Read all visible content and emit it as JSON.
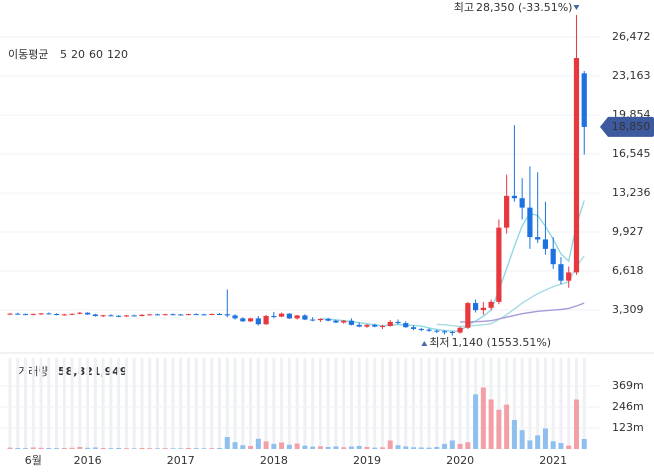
{
  "chart_data": {
    "type": "candlestick",
    "categories": [
      null,
      null,
      null,
      "6월",
      null,
      null,
      null,
      null,
      null,
      null,
      "2016",
      null,
      null,
      null,
      null,
      null,
      null,
      null,
      null,
      null,
      null,
      null,
      "2017",
      null,
      null,
      null,
      null,
      null,
      null,
      null,
      null,
      null,
      null,
      null,
      "2018",
      null,
      null,
      null,
      null,
      null,
      null,
      null,
      null,
      null,
      null,
      null,
      "2019",
      null,
      null,
      null,
      null,
      null,
      null,
      null,
      null,
      null,
      null,
      null,
      "2020",
      null,
      null,
      null,
      null,
      null,
      null,
      null,
      null,
      null,
      null,
      null,
      "2021",
      null,
      null,
      null,
      null
    ],
    "candles": {
      "open": [
        2950,
        3000,
        2960,
        2920,
        2980,
        3020,
        2970,
        2890,
        2940,
        2990,
        3080,
        2930,
        2800,
        2860,
        2820,
        2760,
        2850,
        2800,
        2900,
        2940,
        2920,
        2950,
        2930,
        2900,
        2960,
        2940,
        2920,
        2970,
        2950,
        2850,
        2600,
        2350,
        2600,
        2100,
        2800,
        2750,
        3000,
        2600,
        2850,
        2500,
        2450,
        2550,
        2400,
        2250,
        2400,
        2050,
        1900,
        2050,
        1900,
        1950,
        2300,
        2200,
        1850,
        1700,
        1650,
        1550,
        1500,
        1450,
        1400,
        1800,
        3900,
        3300,
        3500,
        4000,
        10300,
        13000,
        12800,
        12000,
        9500,
        9300,
        8500,
        7200,
        5800,
        6500,
        23400
      ],
      "high": [
        3050,
        3080,
        3020,
        3000,
        3060,
        3100,
        3030,
        2980,
        3020,
        3150,
        3120,
        2990,
        2900,
        2950,
        2880,
        2880,
        2920,
        2960,
        2980,
        3000,
        2990,
        3020,
        2980,
        2990,
        3030,
        3000,
        3010,
        3050,
        5050,
        2950,
        2700,
        2650,
        2800,
        2900,
        3150,
        3100,
        3050,
        2900,
        2950,
        2700,
        2600,
        2650,
        2500,
        2450,
        2600,
        2250,
        2100,
        2150,
        2050,
        2450,
        2500,
        2350,
        2000,
        1800,
        1750,
        1650,
        1600,
        1550,
        1900,
        4000,
        4200,
        4000,
        4200,
        11000,
        14800,
        19000,
        14500,
        15500,
        15000,
        12500,
        9500,
        7800,
        7000,
        28350,
        23600
      ],
      "low": [
        2900,
        2920,
        2880,
        2860,
        2900,
        2950,
        2850,
        2820,
        2880,
        2950,
        2900,
        2750,
        2720,
        2780,
        2700,
        2720,
        2780,
        2780,
        2850,
        2880,
        2860,
        2880,
        2870,
        2860,
        2900,
        2880,
        2870,
        2900,
        2700,
        2500,
        2300,
        2300,
        2000,
        2050,
        2600,
        2700,
        2550,
        2500,
        2450,
        2350,
        2300,
        2350,
        2200,
        2150,
        2000,
        1850,
        1800,
        1850,
        1700,
        1900,
        2100,
        1800,
        1600,
        1500,
        1450,
        1350,
        1250,
        1140,
        1300,
        1700,
        3100,
        2900,
        3300,
        3800,
        9800,
        12500,
        11000,
        8500,
        9000,
        8000,
        6800,
        5500,
        5200,
        6300,
        16500
      ],
      "close": [
        3000,
        2960,
        2920,
        2980,
        3020,
        2970,
        2890,
        2940,
        2990,
        3080,
        2930,
        2800,
        2860,
        2820,
        2760,
        2850,
        2800,
        2900,
        2940,
        2920,
        2950,
        2930,
        2900,
        2960,
        2940,
        2920,
        2970,
        2950,
        2850,
        2600,
        2350,
        2600,
        2100,
        2800,
        2750,
        3000,
        2600,
        2850,
        2500,
        2450,
        2550,
        2400,
        2250,
        2400,
        2050,
        1900,
        2050,
        1900,
        1950,
        2300,
        2200,
        1850,
        1700,
        1650,
        1550,
        1500,
        1450,
        1400,
        1800,
        3900,
        3300,
        3500,
        4000,
        10300,
        13000,
        12800,
        12000,
        9500,
        9300,
        8500,
        7200,
        5800,
        6500,
        24700,
        18850
      ]
    },
    "up_color": "#e8383f",
    "down_color": "#1b72e0",
    "volume": [
      8000000,
      6000000,
      5000000,
      9000000,
      7000000,
      6000000,
      5000000,
      6000000,
      7000000,
      12000000,
      7000000,
      9000000,
      6000000,
      5000000,
      6000000,
      5000000,
      4000000,
      6000000,
      5000000,
      4000000,
      5000000,
      4000000,
      4000000,
      6000000,
      5000000,
      4000000,
      5000000,
      6000000,
      70000000,
      40000000,
      22000000,
      18000000,
      60000000,
      45000000,
      30000000,
      38000000,
      25000000,
      32000000,
      20000000,
      14000000,
      16000000,
      12000000,
      15000000,
      10000000,
      14000000,
      18000000,
      12000000,
      8000000,
      10000000,
      50000000,
      22000000,
      15000000,
      10000000,
      9000000,
      8000000,
      12000000,
      30000000,
      50000000,
      30000000,
      40000000,
      320000000,
      360000000,
      290000000,
      230000000,
      260000000,
      170000000,
      110000000,
      50000000,
      80000000,
      120000000,
      45000000,
      35000000,
      20000000,
      290000000,
      58821949
    ],
    "volume_up_color": "#f2a0a6",
    "volume_down_color": "#8ebfee",
    "moving_average_label": "이동평균",
    "moving_averages": [
      {
        "name": "5",
        "color": "#2bb5c0",
        "line_color": "#8fd8e4",
        "values": [
          null,
          null,
          null,
          null,
          null,
          null,
          null,
          null,
          null,
          null,
          null,
          null,
          null,
          null,
          null,
          null,
          null,
          null,
          null,
          null,
          null,
          null,
          null,
          null,
          null,
          null,
          null,
          null,
          null,
          null,
          null,
          null,
          null,
          null,
          null,
          null,
          null,
          null,
          null,
          null,
          2550,
          2550,
          2460,
          2410,
          2330,
          2230,
          2150,
          2060,
          1970,
          2020,
          2080,
          2040,
          2000,
          1940,
          1790,
          1660,
          1570,
          1520,
          1540,
          2010,
          2380,
          2780,
          3300,
          5000,
          6820,
          8720,
          10460,
          11520,
          11320,
          10420,
          9300,
          8060,
          7460,
          10540,
          12600
        ]
      },
      {
        "name": "20",
        "color": "#3a9fe0",
        "line_color": "#a6dbe6",
        "values": [
          null,
          null,
          null,
          null,
          null,
          null,
          null,
          null,
          null,
          null,
          null,
          null,
          null,
          null,
          null,
          null,
          null,
          null,
          null,
          null,
          null,
          null,
          null,
          null,
          null,
          null,
          null,
          null,
          null,
          null,
          null,
          null,
          null,
          null,
          null,
          null,
          null,
          null,
          null,
          null,
          null,
          null,
          null,
          null,
          null,
          null,
          null,
          null,
          null,
          null,
          null,
          null,
          null,
          null,
          null,
          2100,
          2050,
          1980,
          1900,
          1950,
          2000,
          2050,
          2150,
          2500,
          2900,
          3400,
          3900,
          4300,
          4700,
          5000,
          5300,
          5500,
          5700,
          7000,
          7900
        ]
      },
      {
        "name": "60",
        "color": "#3a3a9e",
        "line_color": "#a79ad8",
        "values": [
          null,
          null,
          null,
          null,
          null,
          null,
          null,
          null,
          null,
          null,
          null,
          null,
          null,
          null,
          null,
          null,
          null,
          null,
          null,
          null,
          null,
          null,
          null,
          null,
          null,
          null,
          null,
          null,
          null,
          null,
          null,
          null,
          null,
          null,
          null,
          null,
          null,
          null,
          null,
          null,
          null,
          null,
          null,
          null,
          null,
          null,
          null,
          null,
          null,
          null,
          null,
          null,
          null,
          null,
          null,
          null,
          null,
          null,
          2300,
          2300,
          2320,
          2350,
          2400,
          2550,
          2700,
          2850,
          3000,
          3100,
          3200,
          3250,
          3300,
          3350,
          3450,
          3650,
          3900
        ]
      },
      {
        "name": "120",
        "color": "#e23b3b",
        "line_color": "#f0a0a0",
        "values": [
          null,
          null,
          null,
          null,
          null,
          null,
          null,
          null,
          null,
          null,
          null,
          null,
          null,
          null,
          null,
          null,
          null,
          null,
          null,
          null,
          null,
          null,
          null,
          null,
          null,
          null,
          null,
          null,
          null,
          null,
          null,
          null,
          null,
          null,
          null,
          null,
          null,
          null,
          null,
          null,
          null,
          null,
          null,
          null,
          null,
          null,
          null,
          null,
          null,
          null,
          null,
          null,
          null,
          null,
          null,
          null,
          null,
          null,
          null,
          null,
          null,
          null,
          null,
          null,
          null,
          null,
          null,
          null,
          null,
          null,
          null,
          null,
          null,
          null,
          null
        ]
      }
    ],
    "ylim": [
      0,
      29200
    ],
    "yticks": [
      {
        "value": 3309,
        "label": "3,309"
      },
      {
        "value": 6618,
        "label": "6,618"
      },
      {
        "value": 9927,
        "label": "9,927"
      },
      {
        "value": 13236,
        "label": "13,236"
      },
      {
        "value": 16545,
        "label": "16,545"
      },
      {
        "value": 19854,
        "label": "19,854"
      },
      {
        "value": 23163,
        "label": "23,163"
      },
      {
        "value": 26472,
        "label": "26,472"
      }
    ],
    "current_price": {
      "value": 18850,
      "label": "18,850"
    },
    "high_annotation": {
      "label": "최고",
      "value_label": "28,350 (-33.51%)"
    },
    "low_annotation": {
      "label": "최저",
      "value_label": "1,140 (1553.51%)"
    },
    "volume_title": "거래량",
    "volume_last_label": "58,821,949",
    "volume_ylim": [
      0,
      533000000
    ],
    "volume_yticks": [
      {
        "value": 123000000,
        "label": "123m"
      },
      {
        "value": 246000000,
        "label": "246m"
      },
      {
        "value": 369000000,
        "label": "369m"
      }
    ]
  }
}
